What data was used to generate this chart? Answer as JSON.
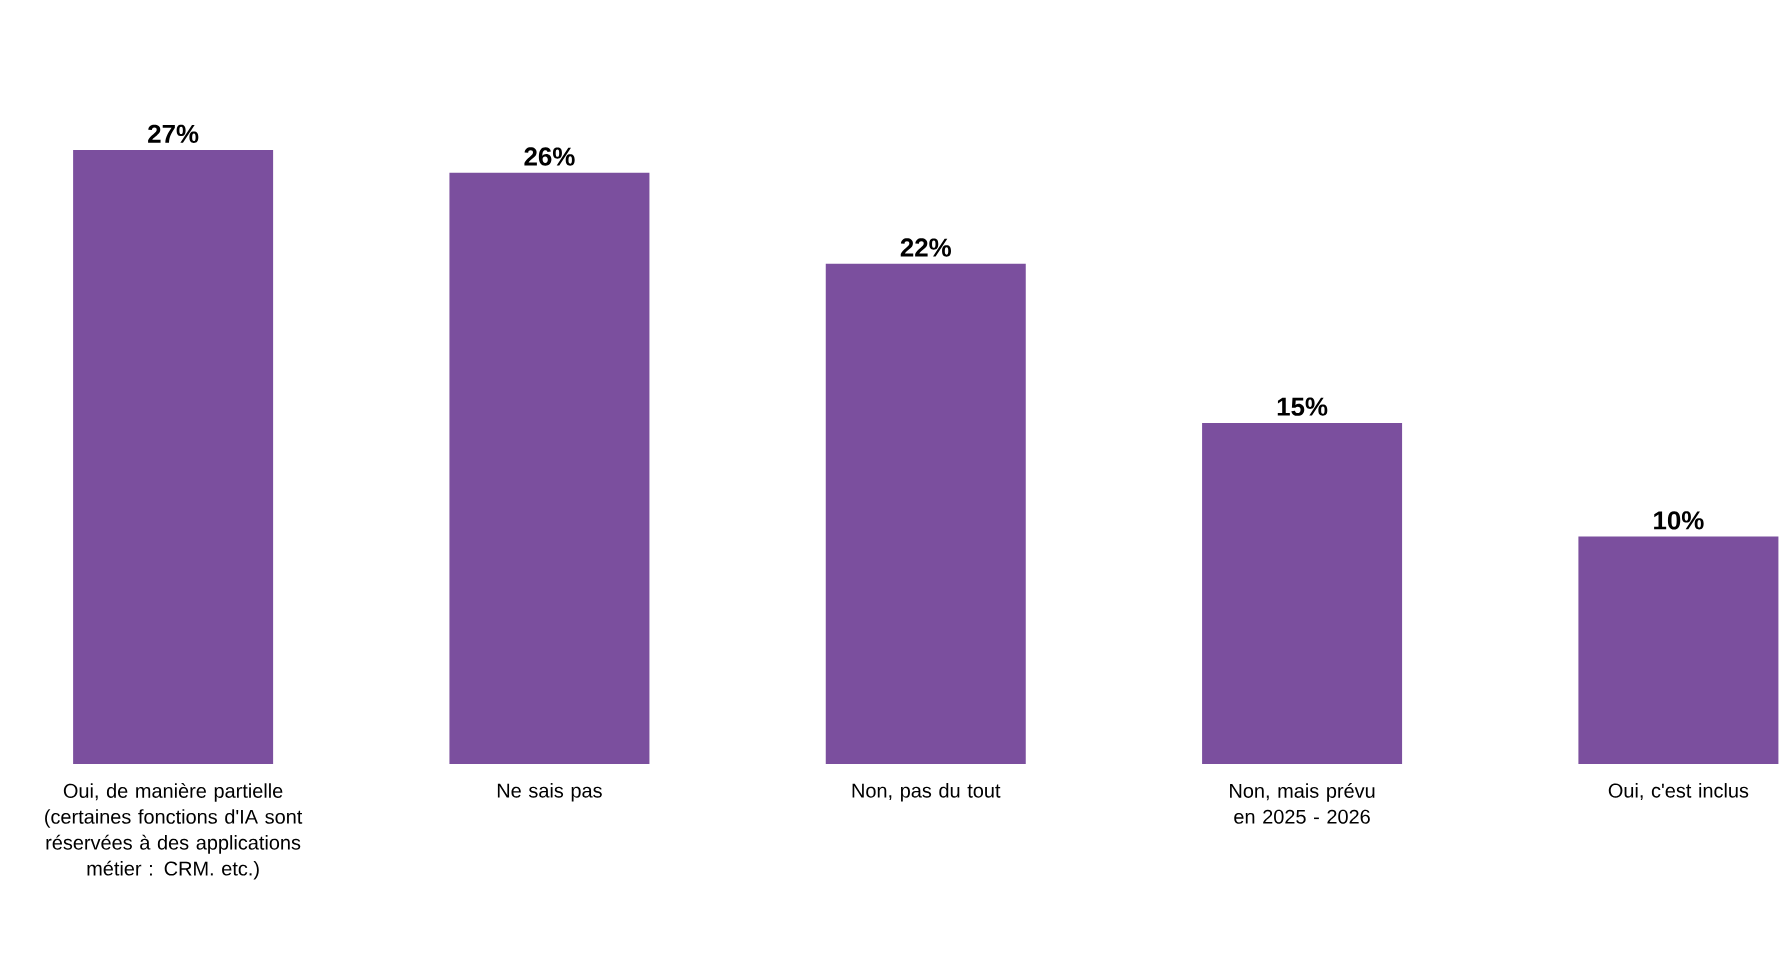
{
  "chart_data": {
    "type": "bar",
    "categories": [
      "Oui, de manière partielle (certaines fonctions d'IA sont réservées à des applications métier : CRM. etc.)",
      "Ne sais pas",
      "Non, pas du tout",
      "Non, mais prévu en 2025 - 2026",
      "Oui, c'est inclus"
    ],
    "values": [
      27,
      26,
      22,
      15,
      10
    ],
    "value_labels": [
      "27%",
      "26%",
      "22%",
      "15%",
      "10%"
    ],
    "color": "#7b4f9e"
  }
}
